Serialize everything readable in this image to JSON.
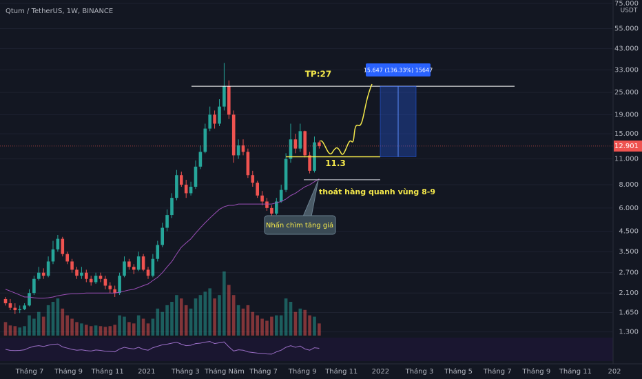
{
  "chart_data": {
    "type": "candlestick",
    "title": "Qtum / TetherUS, 1W, BINANCE",
    "currency": "USDT",
    "log_scale": true,
    "up_color": "#26a69a",
    "down_color": "#ef5350",
    "ma_color": "#9c4fb8",
    "rsi_color": "#9c6fc8",
    "ylim": [
      1.21,
      78.3
    ],
    "yticks": [
      {
        "value": 75,
        "label": "75.000"
      },
      {
        "value": 55,
        "label": "55.000"
      },
      {
        "value": 43,
        "label": "43.000"
      },
      {
        "value": 33,
        "label": "33.000"
      },
      {
        "value": 25,
        "label": "25.000"
      },
      {
        "value": 19,
        "label": "19.000"
      },
      {
        "value": 15,
        "label": "15.000"
      },
      {
        "value": 11,
        "label": "11.000"
      },
      {
        "value": 8,
        "label": "8.000"
      },
      {
        "value": 6,
        "label": "6.000"
      },
      {
        "value": 4.5,
        "label": "4.500"
      },
      {
        "value": 3.5,
        "label": "3.500"
      },
      {
        "value": 2.7,
        "label": "2.700"
      },
      {
        "value": 2.1,
        "label": "2.100"
      },
      {
        "value": 1.65,
        "label": "1.650"
      },
      {
        "value": 1.3,
        "label": "1.300"
      }
    ],
    "last_price": {
      "value": 12.901,
      "label": "12.901"
    },
    "x_labels": [
      "Tháng 7",
      "Tháng 9",
      "Tháng 11",
      "2021",
      "Tháng 3",
      "Tháng Năm",
      "Tháng 7",
      "Tháng 9",
      "Tháng 11",
      "2022",
      "Tháng 3",
      "Tháng 5",
      "Tháng 7",
      "Tháng 9",
      "Tháng 11",
      "202"
    ],
    "open": [
      1.95,
      1.85,
      1.75,
      1.7,
      1.72,
      1.8,
      2.1,
      2.5,
      2.7,
      2.6,
      3.1,
      3.6,
      4.1,
      3.4,
      3.1,
      2.8,
      2.6,
      2.7,
      2.5,
      2.4,
      2.6,
      2.5,
      2.3,
      2.2,
      2.1,
      2.6,
      3.1,
      2.9,
      2.8,
      3.3,
      2.8,
      2.6,
      3.2,
      3.8,
      4.7,
      5.5,
      6.8,
      9,
      8,
      7.2,
      7.8,
      10,
      12,
      16,
      19,
      17,
      21,
      27,
      19,
      11.5,
      13,
      12,
      9,
      8.2,
      7,
      6.5,
      6,
      5.6,
      6.5,
      7.5,
      11,
      14,
      12.5,
      15.5,
      11.5,
      9.5,
      13.5
    ],
    "high": [
      2.0,
      1.95,
      1.85,
      1.8,
      1.85,
      2.2,
      2.6,
      2.9,
      2.85,
      3.3,
      4.0,
      4.3,
      4.2,
      3.5,
      3.2,
      2.9,
      2.9,
      2.8,
      2.6,
      2.7,
      2.7,
      2.6,
      2.4,
      2.3,
      2.7,
      3.3,
      3.2,
      3.0,
      3.5,
      3.4,
      2.9,
      3.4,
      4.0,
      5.0,
      5.9,
      7.2,
      9.6,
      9.4,
      8.5,
      8.3,
      10.8,
      13,
      17,
      21,
      20,
      23,
      36,
      29,
      20,
      14,
      14,
      12.5,
      9.5,
      8.4,
      7.4,
      6.8,
      6.2,
      6.8,
      8,
      11.8,
      17,
      15,
      17,
      15.6,
      12,
      14.5,
      13.8
    ],
    "low": [
      1.8,
      1.7,
      1.62,
      1.64,
      1.7,
      1.78,
      2.05,
      2.45,
      2.5,
      2.55,
      3.0,
      3.5,
      3.3,
      3.0,
      2.7,
      2.5,
      2.5,
      2.4,
      2.3,
      2.35,
      2.4,
      2.2,
      2.1,
      2.0,
      2.05,
      2.55,
      2.8,
      2.65,
      2.75,
      2.75,
      2.5,
      2.55,
      3.1,
      3.7,
      4.5,
      5.3,
      6.6,
      7.8,
      6.8,
      7.0,
      7.6,
      9.7,
      11.8,
      15.5,
      16,
      16.5,
      20,
      18,
      10.5,
      11,
      11.5,
      8.7,
      7.8,
      6.8,
      6.2,
      5.8,
      4.9,
      5.5,
      6.4,
      7.3,
      10.5,
      11.8,
      12,
      11.2,
      9.2,
      9.3,
      12.5
    ],
    "close": [
      1.85,
      1.75,
      1.7,
      1.72,
      1.8,
      2.1,
      2.5,
      2.7,
      2.6,
      3.1,
      3.6,
      4.1,
      3.4,
      3.1,
      2.8,
      2.6,
      2.7,
      2.5,
      2.4,
      2.6,
      2.5,
      2.3,
      2.2,
      2.1,
      2.6,
      3.1,
      2.9,
      2.8,
      3.3,
      2.8,
      2.6,
      3.2,
      3.8,
      4.7,
      5.5,
      6.8,
      9,
      8,
      7.2,
      7.8,
      10,
      12,
      16,
      19,
      17,
      21,
      27,
      19,
      11.5,
      13,
      12,
      9,
      8.2,
      7,
      6.5,
      6,
      5.6,
      6.5,
      7.5,
      11,
      14,
      12.5,
      15.5,
      11.5,
      9.5,
      13.5,
      12.9
    ],
    "volume": [
      20,
      15,
      14,
      12,
      14,
      30,
      25,
      35,
      28,
      45,
      50,
      55,
      40,
      30,
      25,
      20,
      18,
      16,
      14,
      15,
      14,
      13,
      14,
      16,
      30,
      28,
      20,
      18,
      30,
      25,
      18,
      25,
      40,
      35,
      45,
      50,
      60,
      55,
      45,
      40,
      55,
      60,
      65,
      70,
      55,
      60,
      95,
      75,
      60,
      45,
      40,
      45,
      35,
      30,
      25,
      22,
      28,
      30,
      30,
      55,
      50,
      35,
      40,
      38,
      30,
      28,
      18
    ],
    "ma": [
      2.2,
      2.15,
      2.1,
      2.05,
      2.0,
      2.0,
      1.98,
      1.97,
      1.97,
      1.98,
      2.0,
      2.03,
      2.05,
      2.07,
      2.08,
      2.08,
      2.09,
      2.1,
      2.1,
      2.1,
      2.1,
      2.1,
      2.1,
      2.1,
      2.12,
      2.15,
      2.18,
      2.2,
      2.25,
      2.3,
      2.35,
      2.45,
      2.55,
      2.7,
      2.9,
      3.1,
      3.4,
      3.7,
      3.9,
      4.1,
      4.4,
      4.7,
      5.0,
      5.3,
      5.6,
      5.9,
      6.1,
      6.2,
      6.2,
      6.3,
      6.3,
      6.3,
      6.3,
      6.3,
      6.3,
      6.3,
      6.3,
      6.4,
      6.5,
      6.7,
      7.0,
      7.2,
      7.5,
      7.8,
      8.0,
      8.3,
      8.6
    ],
    "rsi": [
      50,
      45,
      44,
      45,
      48,
      58,
      65,
      68,
      64,
      70,
      74,
      76,
      62,
      56,
      50,
      46,
      48,
      44,
      42,
      47,
      45,
      41,
      40,
      38,
      52,
      60,
      55,
      52,
      60,
      50,
      46,
      58,
      65,
      72,
      75,
      80,
      85,
      75,
      68,
      70,
      78,
      80,
      85,
      88,
      78,
      82,
      86,
      62,
      42,
      48,
      46,
      38,
      35,
      32,
      30,
      28,
      27,
      38,
      46,
      60,
      68,
      60,
      66,
      52,
      46,
      58,
      55
    ],
    "levels": [
      27,
      11.3,
      8.5
    ],
    "annotations": {
      "tp": "TP:27",
      "position": "15.647 (136.33%) 15647",
      "entry": "11.3",
      "exit": "thoát hàng quanh vùng 8-9",
      "pattern": "Nhấn chìm tăng giá"
    }
  }
}
